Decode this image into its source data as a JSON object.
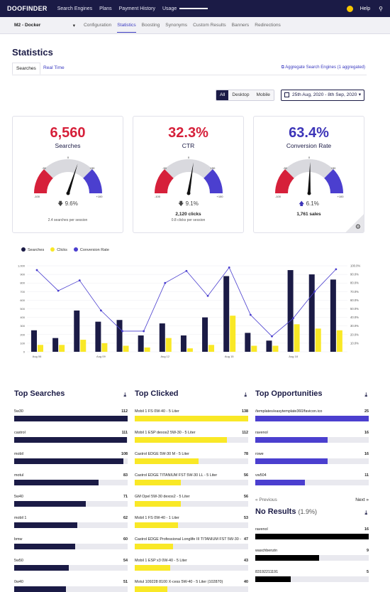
{
  "topnav": {
    "logo": "DOOFINDER",
    "items": [
      "Search Engines",
      "Plans",
      "Payment History",
      "Usage"
    ],
    "help": "Help"
  },
  "subnav": {
    "project": "M2 - Docker",
    "tabs": [
      "Configuration",
      "Statistics",
      "Boosting",
      "Synonyms",
      "Custom Results",
      "Banners",
      "Redirections"
    ],
    "active": "Statistics"
  },
  "page": {
    "title": "Statistics",
    "tab_searches": "Searches",
    "tab_realtime": "Real Time",
    "aggregate": "Aggregate Search Engines (1 aggregated)"
  },
  "filters": {
    "segments": [
      "All",
      "Desktop",
      "Mobile"
    ],
    "active": "All",
    "date_range": "25th Aug, 2020 - 8th Sep, 2020"
  },
  "cards": [
    {
      "value": "6,560",
      "label": "Searches",
      "color": "#d6203a",
      "delta": "9.6%",
      "delta_dir": "down",
      "line1": "",
      "line2": "2.4 searches per session",
      "needle": 0.6
    },
    {
      "value": "32.3%",
      "label": "CTR",
      "color": "#d6203a",
      "delta": "9.1%",
      "delta_dir": "down",
      "line1": "2,120 clicks",
      "line2": "0.8 clicks per session",
      "needle": 0.55
    },
    {
      "value": "63.4%",
      "label": "Conversion Rate",
      "color": "#3c34b8",
      "delta": "6.1%",
      "delta_dir": "up",
      "line1": "1,761 sales",
      "line2": "",
      "needle": 0.51
    }
  ],
  "gauge_ticks": {
    "left": "-50",
    "center": "0",
    "right": "+50",
    "far_left": "-100",
    "far_right": "+100"
  },
  "colors": {
    "navy": "#1b1b46",
    "yellow": "#f9e826",
    "purple": "#4b3fcf",
    "red": "#d6203a"
  },
  "chart_data": {
    "type": "bar",
    "legend": [
      "Searches",
      "Clicks",
      "Conversion Rate"
    ],
    "x_tick_labels": [
      "Aug 06",
      "Aug 09",
      "Aug 12",
      "Aug 15",
      "Aug 18"
    ],
    "ylim": [
      0,
      1000
    ],
    "y_ticks": [
      "0",
      "100",
      "200",
      "300",
      "400",
      "500",
      "600",
      "700",
      "800",
      "900",
      "1,000"
    ],
    "y2_ticks": [
      "10.0%",
      "20.0%",
      "30.0%",
      "40.0%",
      "50.0%",
      "60.0%",
      "70.0%",
      "80.0%",
      "90.0%",
      "100.0%"
    ],
    "series": [
      {
        "name": "Searches",
        "values": [
          250,
          160,
          480,
          350,
          370,
          190,
          330,
          190,
          400,
          880,
          220,
          130,
          950,
          900,
          840
        ]
      },
      {
        "name": "Clicks",
        "values": [
          80,
          80,
          140,
          100,
          70,
          50,
          160,
          40,
          80,
          420,
          70,
          70,
          320,
          270,
          250
        ]
      },
      {
        "name": "Conversion Rate",
        "values": [
          95,
          71,
          83,
          48,
          24,
          24,
          80,
          94,
          65,
          98,
          43,
          18,
          39,
          70,
          96
        ]
      }
    ]
  },
  "top_searches": {
    "title": "Top Searches",
    "items": [
      [
        "5w30",
        112
      ],
      [
        "castrol",
        111
      ],
      [
        "mobil",
        108
      ],
      [
        "motul",
        83
      ],
      [
        "5w40",
        71
      ],
      [
        "mobil 1",
        62
      ],
      [
        "bmw",
        60
      ],
      [
        "5w50",
        54
      ],
      [
        "0w40",
        51
      ]
    ]
  },
  "top_clicked": {
    "title": "Top Clicked",
    "items": [
      [
        "Mobil 1 FS 0W-40 - 5 Liter",
        138
      ],
      [
        "Mobil 1 ESP dexos2 5W-30 - 5 Liter",
        112
      ],
      [
        "Castrol EDGE 5W-30 M - 5 Liter",
        78
      ],
      [
        "Castrol EDGE TITANIUM FST 5W-30 LL - 5 Liter",
        56
      ],
      [
        "GM Opel 5W-30 dexos2 - 5 Liter",
        56
      ],
      [
        "Mobil 1 FS 0W-40 - 1 Liter",
        53
      ],
      [
        "Castrol EDGE Professional Longlife III TITANIUM FST 5W-30 -",
        47
      ],
      [
        "Mobil 1 ESP x3 0W-40 - 5 Liter",
        43
      ],
      [
        "Motul 109228 8100 X-cess 5W-40 - 5 Liter (102870)",
        40
      ]
    ]
  },
  "top_opportunities": {
    "title": "Top Opportunities",
    "items": [
      [
        "/templates/easytemplate360/favicon.ico",
        25
      ],
      [
        "ravenol",
        16
      ],
      [
        "rowe",
        16
      ],
      [
        "vw504",
        11
      ]
    ],
    "prev": "« Previous",
    "next": "Next »"
  },
  "no_results": {
    "title": "No Results",
    "pct": "(1.9%)",
    "items": [
      [
        "ravenol",
        16
      ],
      [
        "waschbenzin",
        9
      ],
      [
        "83192211191",
        5
      ]
    ]
  }
}
